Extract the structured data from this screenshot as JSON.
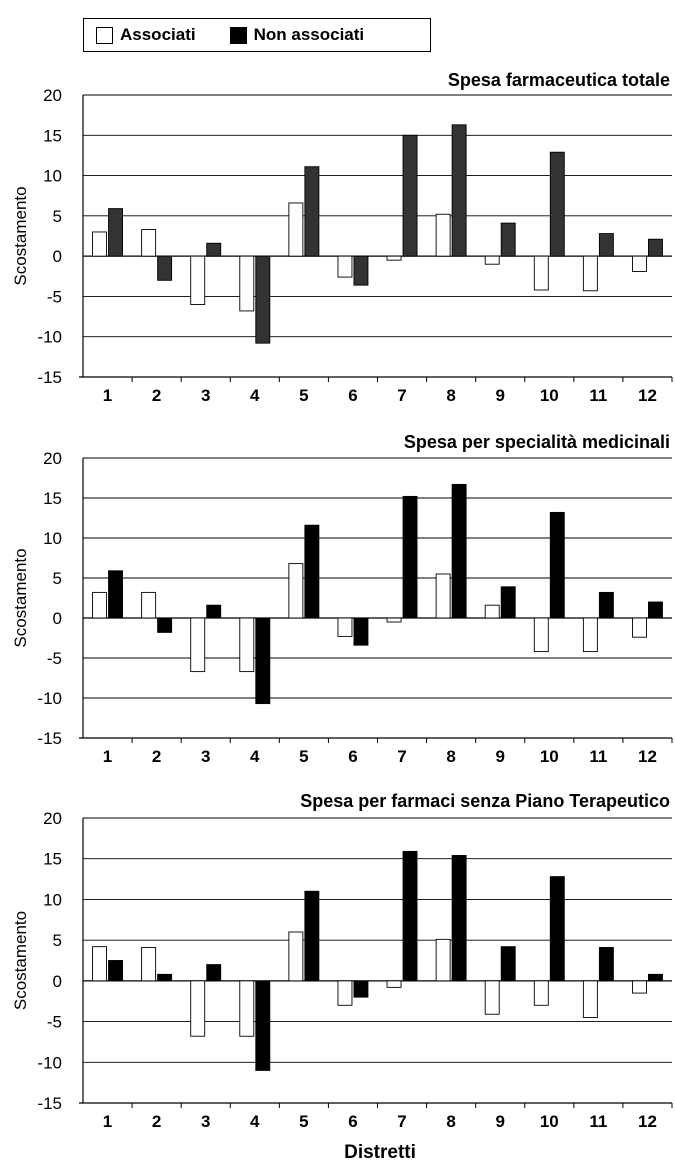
{
  "legend": {
    "associated_label": "Associati",
    "non_associated_label": "Non associati"
  },
  "colors": {
    "associated_fill": "#ffffff",
    "non_associated_fill_chart1": "#333333",
    "non_associated_fill": "#000000"
  },
  "x_axis_title": "Distretti",
  "chart_data": [
    {
      "type": "bar",
      "title": "Spesa farmaceutica totale",
      "ylabel": "Scostamento",
      "xlabel": "",
      "ylim": [
        -15,
        20
      ],
      "yticks": [
        20,
        15,
        10,
        5,
        0,
        -5,
        -10,
        -15
      ],
      "grid": true,
      "categories": [
        "1",
        "2",
        "3",
        "4",
        "5",
        "6",
        "7",
        "8",
        "9",
        "10",
        "11",
        "12"
      ],
      "series": [
        {
          "name": "Associati",
          "values": [
            3.0,
            3.3,
            -6.0,
            -6.8,
            6.6,
            -2.6,
            -0.5,
            5.2,
            -1.0,
            -4.2,
            -4.3,
            -1.9
          ]
        },
        {
          "name": "Non associati",
          "values": [
            5.9,
            -3.0,
            1.6,
            -10.8,
            11.1,
            -3.6,
            15.0,
            16.3,
            4.1,
            12.9,
            2.8,
            2.1
          ]
        }
      ]
    },
    {
      "type": "bar",
      "title": "Spesa per specialità medicinali",
      "ylabel": "Scostamento",
      "xlabel": "",
      "ylim": [
        -15,
        20
      ],
      "yticks": [
        20,
        15,
        10,
        5,
        0,
        -5,
        -10,
        -15
      ],
      "grid": true,
      "categories": [
        "1",
        "2",
        "3",
        "4",
        "5",
        "6",
        "7",
        "8",
        "9",
        "10",
        "11",
        "12"
      ],
      "series": [
        {
          "name": "Associati",
          "values": [
            3.2,
            3.2,
            -6.7,
            -6.7,
            6.8,
            -2.3,
            -0.5,
            5.5,
            1.6,
            -4.2,
            -4.2,
            -2.4
          ]
        },
        {
          "name": "Non associati",
          "values": [
            5.9,
            -1.8,
            1.6,
            -10.7,
            11.6,
            -3.4,
            15.2,
            16.7,
            3.9,
            13.2,
            3.2,
            2.0
          ]
        }
      ]
    },
    {
      "type": "bar",
      "title": "Spesa per farmaci senza Piano Terapeutico",
      "ylabel": "Scostamento",
      "xlabel": "",
      "ylim": [
        -15,
        20
      ],
      "yticks": [
        20,
        15,
        10,
        5,
        0,
        -5,
        -10,
        -15
      ],
      "grid": true,
      "categories": [
        "1",
        "2",
        "3",
        "4",
        "5",
        "6",
        "7",
        "8",
        "9",
        "10",
        "11",
        "12"
      ],
      "series": [
        {
          "name": "Associati",
          "values": [
            4.2,
            4.1,
            -6.8,
            -6.8,
            6.0,
            -3.0,
            -0.8,
            5.1,
            -4.1,
            -3.0,
            -4.5,
            -1.5
          ]
        },
        {
          "name": "Non associati",
          "values": [
            2.5,
            0.8,
            2.0,
            -11.0,
            11.0,
            -2.0,
            15.9,
            15.4,
            4.2,
            12.8,
            4.1,
            0.8
          ]
        }
      ]
    }
  ]
}
